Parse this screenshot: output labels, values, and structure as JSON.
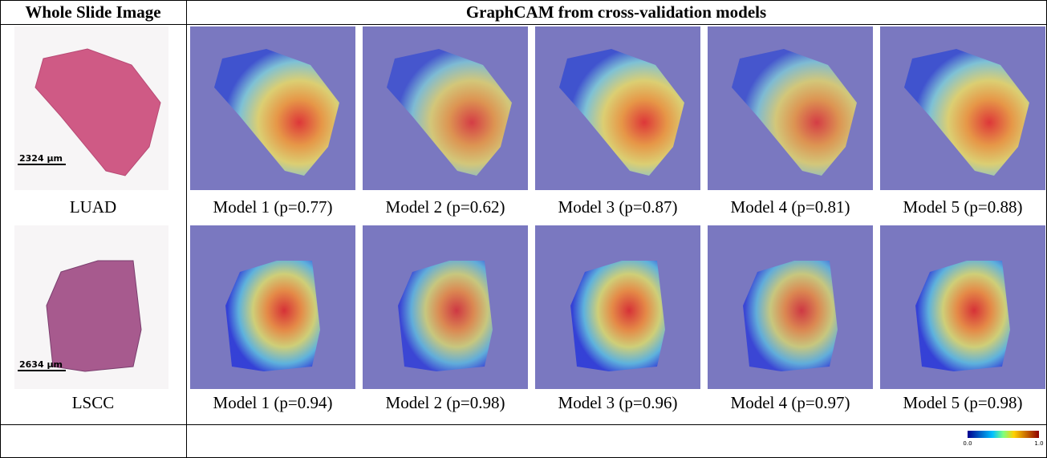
{
  "header": {
    "left": "Whole Slide Image",
    "right": "GraphCAM from cross-validation models"
  },
  "rows": [
    {
      "label": "LUAD",
      "scale_bar": "2324 µm",
      "models": [
        "Model 1 (p=0.77)",
        "Model 2 (p=0.62)",
        "Model 3 (p=0.87)",
        "Model 4 (p=0.81)",
        "Model 5 (p=0.88)"
      ]
    },
    {
      "label": "LSCC",
      "scale_bar": "2634 µm",
      "models": [
        "Model 1 (p=0.94)",
        "Model 2 (p=0.98)",
        "Model 3 (p=0.96)",
        "Model 4 (p=0.97)",
        "Model 5 (p=0.98)"
      ]
    }
  ],
  "colorbar": {
    "min": "0.0",
    "max": "1.0"
  }
}
